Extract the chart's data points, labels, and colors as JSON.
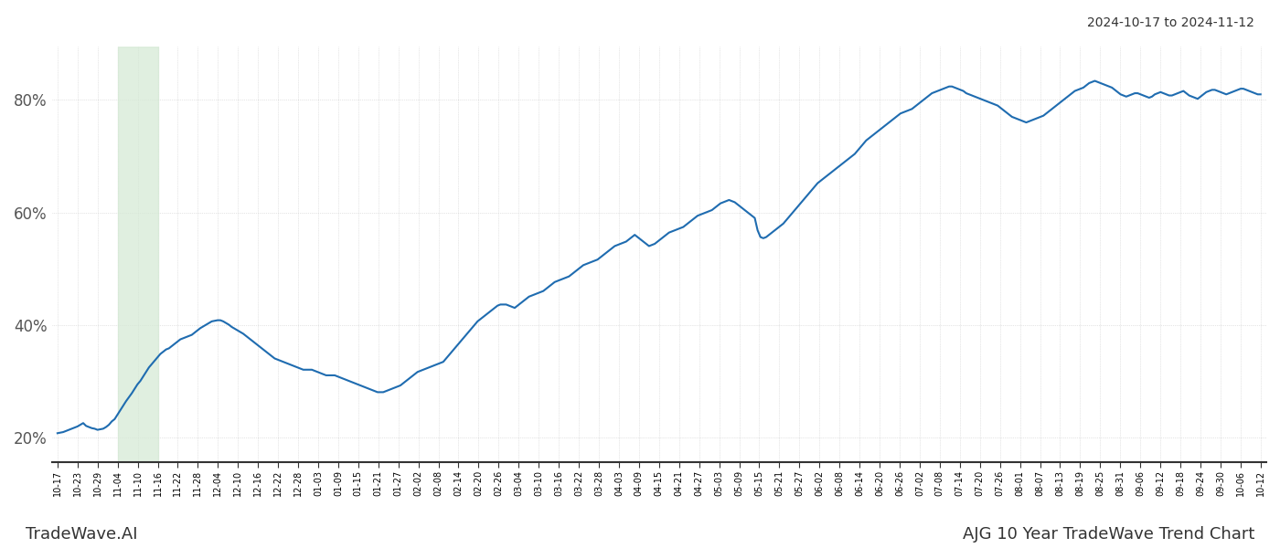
{
  "title_right": "2024-10-17 to 2024-11-12",
  "footer_left": "TradeWave.AI",
  "footer_right": "AJG 10 Year TradeWave Trend Chart",
  "line_color": "#1f6cb0",
  "line_width": 1.5,
  "highlight_color": "#d4e9d4",
  "highlight_alpha": 0.7,
  "background_color": "#ffffff",
  "grid_color": "#cccccc",
  "ylim": [
    0.155,
    0.895
  ],
  "yticks": [
    0.2,
    0.4,
    0.6,
    0.8
  ],
  "x_labels": [
    "10-17",
    "10-23",
    "10-29",
    "11-04",
    "11-10",
    "11-16",
    "11-22",
    "11-28",
    "12-04",
    "12-10",
    "12-16",
    "12-22",
    "12-28",
    "01-03",
    "01-09",
    "01-15",
    "01-21",
    "01-27",
    "02-02",
    "02-08",
    "02-14",
    "02-20",
    "02-26",
    "03-04",
    "03-10",
    "03-16",
    "03-22",
    "03-28",
    "04-03",
    "04-09",
    "04-15",
    "04-21",
    "04-27",
    "05-03",
    "05-09",
    "05-15",
    "05-21",
    "05-27",
    "06-02",
    "06-08",
    "06-14",
    "06-20",
    "06-26",
    "07-02",
    "07-08",
    "07-14",
    "07-20",
    "07-26",
    "08-01",
    "08-07",
    "08-13",
    "08-19",
    "08-25",
    "08-31",
    "09-06",
    "09-12",
    "09-18",
    "09-24",
    "09-30",
    "10-06",
    "10-12"
  ],
  "highlight_label_start": "11-04",
  "highlight_label_end": "11-16",
  "y_values": [
    0.207,
    0.208,
    0.209,
    0.211,
    0.213,
    0.215,
    0.217,
    0.219,
    0.222,
    0.225,
    0.22,
    0.218,
    0.216,
    0.215,
    0.213,
    0.214,
    0.215,
    0.218,
    0.222,
    0.228,
    0.232,
    0.24,
    0.248,
    0.256,
    0.264,
    0.271,
    0.278,
    0.286,
    0.294,
    0.3,
    0.308,
    0.316,
    0.324,
    0.33,
    0.336,
    0.342,
    0.348,
    0.352,
    0.356,
    0.358,
    0.362,
    0.366,
    0.37,
    0.374,
    0.376,
    0.378,
    0.38,
    0.382,
    0.386,
    0.39,
    0.394,
    0.397,
    0.4,
    0.403,
    0.406,
    0.407,
    0.408,
    0.408,
    0.406,
    0.403,
    0.4,
    0.396,
    0.393,
    0.39,
    0.387,
    0.384,
    0.38,
    0.376,
    0.372,
    0.368,
    0.364,
    0.36,
    0.356,
    0.352,
    0.348,
    0.344,
    0.34,
    0.338,
    0.336,
    0.334,
    0.332,
    0.33,
    0.328,
    0.326,
    0.324,
    0.322,
    0.32,
    0.32,
    0.32,
    0.32,
    0.318,
    0.316,
    0.314,
    0.312,
    0.31,
    0.31,
    0.31,
    0.31,
    0.308,
    0.306,
    0.304,
    0.302,
    0.3,
    0.298,
    0.296,
    0.294,
    0.292,
    0.29,
    0.288,
    0.286,
    0.284,
    0.282,
    0.28,
    0.28,
    0.28,
    0.282,
    0.284,
    0.286,
    0.288,
    0.29,
    0.292,
    0.296,
    0.3,
    0.304,
    0.308,
    0.312,
    0.316,
    0.318,
    0.32,
    0.322,
    0.324,
    0.326,
    0.328,
    0.33,
    0.332,
    0.334,
    0.34,
    0.346,
    0.352,
    0.358,
    0.364,
    0.37,
    0.376,
    0.382,
    0.388,
    0.394,
    0.4,
    0.406,
    0.41,
    0.414,
    0.418,
    0.422,
    0.426,
    0.43,
    0.434,
    0.436,
    0.436,
    0.436,
    0.434,
    0.432,
    0.43,
    0.434,
    0.438,
    0.442,
    0.446,
    0.45,
    0.452,
    0.454,
    0.456,
    0.458,
    0.46,
    0.464,
    0.468,
    0.472,
    0.476,
    0.478,
    0.48,
    0.482,
    0.484,
    0.486,
    0.49,
    0.494,
    0.498,
    0.502,
    0.506,
    0.508,
    0.51,
    0.512,
    0.514,
    0.516,
    0.52,
    0.524,
    0.528,
    0.532,
    0.536,
    0.54,
    0.542,
    0.544,
    0.546,
    0.548,
    0.552,
    0.556,
    0.56,
    0.556,
    0.552,
    0.548,
    0.544,
    0.54,
    0.542,
    0.544,
    0.548,
    0.552,
    0.556,
    0.56,
    0.564,
    0.566,
    0.568,
    0.57,
    0.572,
    0.574,
    0.578,
    0.582,
    0.586,
    0.59,
    0.594,
    0.596,
    0.598,
    0.6,
    0.602,
    0.604,
    0.608,
    0.612,
    0.616,
    0.618,
    0.62,
    0.622,
    0.62,
    0.618,
    0.614,
    0.61,
    0.606,
    0.602,
    0.598,
    0.594,
    0.59,
    0.568,
    0.556,
    0.554,
    0.556,
    0.56,
    0.564,
    0.568,
    0.572,
    0.576,
    0.58,
    0.586,
    0.592,
    0.598,
    0.604,
    0.61,
    0.616,
    0.622,
    0.628,
    0.634,
    0.64,
    0.646,
    0.652,
    0.656,
    0.66,
    0.664,
    0.668,
    0.672,
    0.676,
    0.68,
    0.684,
    0.688,
    0.692,
    0.696,
    0.7,
    0.704,
    0.71,
    0.716,
    0.722,
    0.728,
    0.732,
    0.736,
    0.74,
    0.744,
    0.748,
    0.752,
    0.756,
    0.76,
    0.764,
    0.768,
    0.772,
    0.776,
    0.778,
    0.78,
    0.782,
    0.784,
    0.788,
    0.792,
    0.796,
    0.8,
    0.804,
    0.808,
    0.812,
    0.814,
    0.816,
    0.818,
    0.82,
    0.822,
    0.824,
    0.824,
    0.822,
    0.82,
    0.818,
    0.816,
    0.812,
    0.81,
    0.808,
    0.806,
    0.804,
    0.802,
    0.8,
    0.798,
    0.796,
    0.794,
    0.792,
    0.79,
    0.786,
    0.782,
    0.778,
    0.774,
    0.77,
    0.768,
    0.766,
    0.764,
    0.762,
    0.76,
    0.762,
    0.764,
    0.766,
    0.768,
    0.77,
    0.772,
    0.776,
    0.78,
    0.784,
    0.788,
    0.792,
    0.796,
    0.8,
    0.804,
    0.808,
    0.812,
    0.816,
    0.818,
    0.82,
    0.822,
    0.826,
    0.83,
    0.832,
    0.834,
    0.832,
    0.83,
    0.828,
    0.826,
    0.824,
    0.822,
    0.818,
    0.814,
    0.81,
    0.808,
    0.806,
    0.808,
    0.81,
    0.812,
    0.812,
    0.81,
    0.808,
    0.806,
    0.804,
    0.806,
    0.81,
    0.812,
    0.814,
    0.812,
    0.81,
    0.808,
    0.808,
    0.81,
    0.812,
    0.814,
    0.816,
    0.812,
    0.808,
    0.806,
    0.804,
    0.802,
    0.806,
    0.81,
    0.814,
    0.816,
    0.818,
    0.818,
    0.816,
    0.814,
    0.812,
    0.81,
    0.812,
    0.814,
    0.816,
    0.818,
    0.82,
    0.82,
    0.818,
    0.816,
    0.814,
    0.812,
    0.81,
    0.81
  ]
}
